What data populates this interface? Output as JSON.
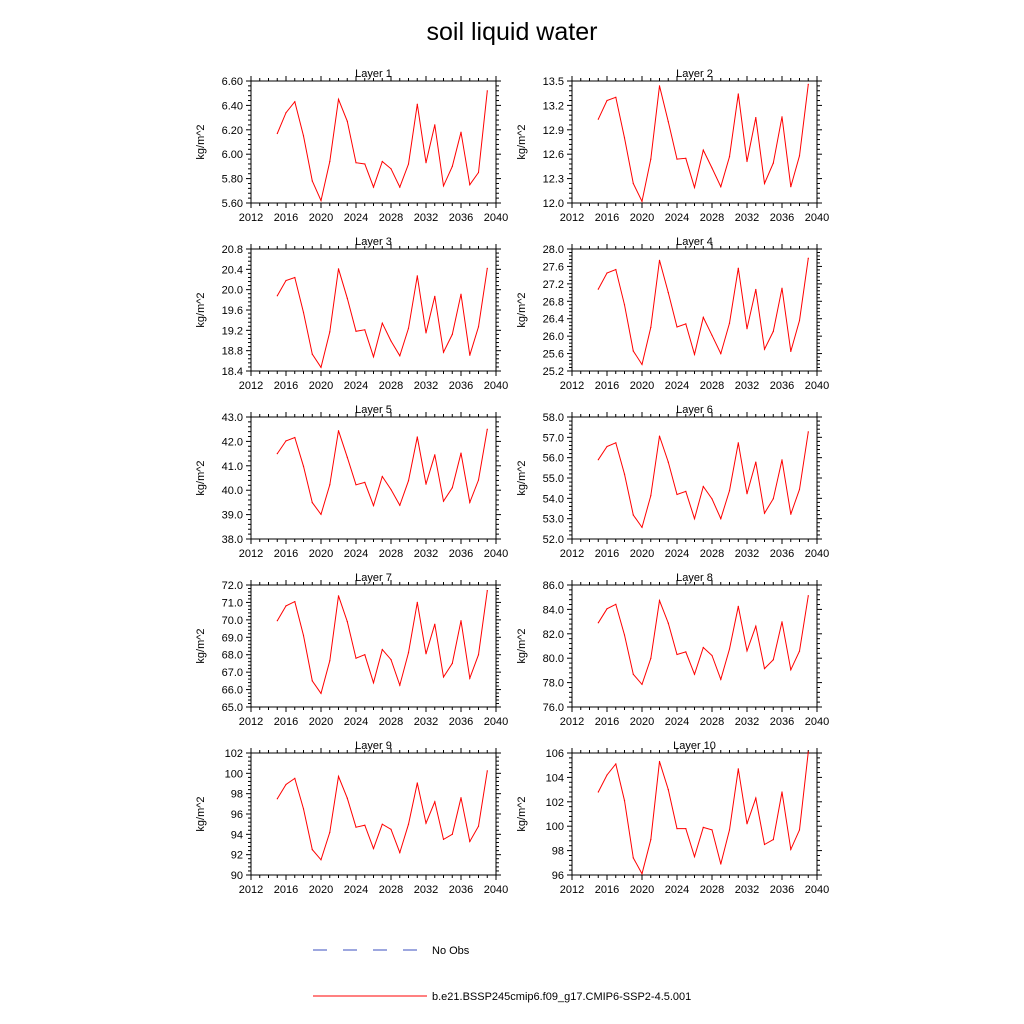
{
  "title": "soil liquid water",
  "colors": {
    "model": "#ff0000",
    "obs": "#3b4fbf",
    "axis": "#000000"
  },
  "legend": {
    "entries": [
      {
        "label": "No Obs",
        "style": "dashed",
        "color": "#3b4fbf"
      },
      {
        "label": "b.e21.BSSP245cmip6.f09_g17.CMIP6-SSP2-4.5.001",
        "style": "solid",
        "color": "#ff0000"
      }
    ]
  },
  "chart_data": [
    {
      "type": "line",
      "title": "Layer 1",
      "ylabel": "kg/m^2",
      "xlim": [
        2012,
        2040
      ],
      "xticks": [
        "2012",
        "2016",
        "2020",
        "2024",
        "2028",
        "2032",
        "2036",
        "2040"
      ],
      "ylim": [
        5.6,
        6.6
      ],
      "yticks": [
        "5.60",
        "5.80",
        "6.00",
        "6.20",
        "6.40",
        "6.60"
      ],
      "grid": false,
      "series": [
        {
          "x": [
            2015,
            2016,
            2017,
            2018,
            2019,
            2020,
            2021,
            2022,
            2023,
            2024,
            2025,
            2026,
            2027,
            2028,
            2029,
            2030,
            2031,
            2032,
            2033,
            2034,
            2035,
            2036,
            2037,
            2038,
            2039
          ],
          "values": [
            6.17,
            6.34,
            6.43,
            6.15,
            5.78,
            5.62,
            5.94,
            6.45,
            6.27,
            5.93,
            5.92,
            5.73,
            5.94,
            5.88,
            5.73,
            5.92,
            6.41,
            5.93,
            6.24,
            5.74,
            5.9,
            6.18,
            5.75,
            5.85,
            6.52
          ]
        }
      ]
    },
    {
      "type": "line",
      "title": "Layer 2",
      "ylabel": "kg/m^2",
      "xlim": [
        2012,
        2040
      ],
      "xticks": [
        "2012",
        "2016",
        "2020",
        "2024",
        "2028",
        "2032",
        "2036",
        "2040"
      ],
      "ylim": [
        12.0,
        13.5
      ],
      "yticks": [
        "12.0",
        "12.3",
        "12.6",
        "12.9",
        "13.2",
        "13.5"
      ],
      "grid": false,
      "series": [
        {
          "x": [
            2015,
            2016,
            2017,
            2018,
            2019,
            2020,
            2021,
            2022,
            2023,
            2024,
            2025,
            2026,
            2027,
            2028,
            2029,
            2030,
            2031,
            2032,
            2033,
            2034,
            2035,
            2036,
            2037,
            2038,
            2039
          ],
          "values": [
            13.03,
            13.26,
            13.3,
            12.8,
            12.24,
            12.02,
            12.54,
            13.44,
            13.0,
            12.54,
            12.55,
            12.19,
            12.65,
            12.43,
            12.2,
            12.57,
            13.34,
            12.51,
            13.05,
            12.24,
            12.49,
            13.06,
            12.2,
            12.58,
            13.46
          ]
        }
      ]
    },
    {
      "type": "line",
      "title": "Layer 3",
      "ylabel": "kg/m^2",
      "xlim": [
        2012,
        2040
      ],
      "xticks": [
        "2012",
        "2016",
        "2020",
        "2024",
        "2028",
        "2032",
        "2036",
        "2040"
      ],
      "ylim": [
        18.4,
        20.8
      ],
      "yticks": [
        "18.4",
        "18.8",
        "19.2",
        "19.6",
        "20.0",
        "20.4",
        "20.8"
      ],
      "grid": false,
      "series": [
        {
          "x": [
            2015,
            2016,
            2017,
            2018,
            2019,
            2020,
            2021,
            2022,
            2023,
            2024,
            2025,
            2026,
            2027,
            2028,
            2029,
            2030,
            2031,
            2032,
            2033,
            2034,
            2035,
            2036,
            2037,
            2038,
            2039
          ],
          "values": [
            19.88,
            20.18,
            20.24,
            19.55,
            18.73,
            18.47,
            19.17,
            20.41,
            19.83,
            19.18,
            19.21,
            18.68,
            19.34,
            18.99,
            18.7,
            19.24,
            20.27,
            19.15,
            19.87,
            18.77,
            19.12,
            19.91,
            18.71,
            19.27,
            20.42
          ]
        }
      ]
    },
    {
      "type": "line",
      "title": "Layer 4",
      "ylabel": "kg/m^2",
      "xlim": [
        2012,
        2040
      ],
      "xticks": [
        "2012",
        "2016",
        "2020",
        "2024",
        "2028",
        "2032",
        "2036",
        "2040"
      ],
      "ylim": [
        25.2,
        28.0
      ],
      "yticks": [
        "25.2",
        "25.6",
        "26.0",
        "26.4",
        "26.8",
        "27.2",
        "27.6",
        "28.0"
      ],
      "grid": false,
      "series": [
        {
          "x": [
            2015,
            2016,
            2017,
            2018,
            2019,
            2020,
            2021,
            2022,
            2023,
            2024,
            2025,
            2026,
            2027,
            2028,
            2029,
            2030,
            2031,
            2032,
            2033,
            2034,
            2035,
            2036,
            2037,
            2038,
            2039
          ],
          "values": [
            27.08,
            27.45,
            27.53,
            26.72,
            25.66,
            25.35,
            26.2,
            27.74,
            27.0,
            26.21,
            26.28,
            25.58,
            26.43,
            26.02,
            25.6,
            26.3,
            27.56,
            26.17,
            27.07,
            25.7,
            26.11,
            27.1,
            25.65,
            26.36,
            27.79
          ]
        }
      ]
    },
    {
      "type": "line",
      "title": "Layer 5",
      "ylabel": "kg/m^2",
      "xlim": [
        2012,
        2040
      ],
      "xticks": [
        "2012",
        "2016",
        "2020",
        "2024",
        "2028",
        "2032",
        "2036",
        "2040"
      ],
      "ylim": [
        38.0,
        43.0
      ],
      "yticks": [
        "38.0",
        "39.0",
        "40.0",
        "41.0",
        "42.0",
        "43.0"
      ],
      "grid": false,
      "series": [
        {
          "x": [
            2015,
            2016,
            2017,
            2018,
            2019,
            2020,
            2021,
            2022,
            2023,
            2024,
            2025,
            2026,
            2027,
            2028,
            2029,
            2030,
            2031,
            2032,
            2033,
            2034,
            2035,
            2036,
            2037,
            2038,
            2039
          ],
          "values": [
            41.5,
            42.02,
            42.16,
            40.98,
            39.49,
            39.01,
            40.22,
            42.44,
            41.35,
            40.22,
            40.32,
            39.37,
            40.56,
            40.03,
            39.38,
            40.39,
            42.18,
            40.25,
            41.45,
            39.55,
            40.1,
            41.52,
            39.5,
            40.42,
            42.5
          ]
        }
      ]
    },
    {
      "type": "line",
      "title": "Layer 6",
      "ylabel": "kg/m^2",
      "xlim": [
        2012,
        2040
      ],
      "xticks": [
        "2012",
        "2016",
        "2020",
        "2024",
        "2028",
        "2032",
        "2036",
        "2040"
      ],
      "ylim": [
        52.0,
        58.0
      ],
      "yticks": [
        "52.0",
        "53.0",
        "54.0",
        "55.0",
        "56.0",
        "57.0",
        "58.0"
      ],
      "grid": false,
      "series": [
        {
          "x": [
            2015,
            2016,
            2017,
            2018,
            2019,
            2020,
            2021,
            2022,
            2023,
            2024,
            2025,
            2026,
            2027,
            2028,
            2029,
            2030,
            2031,
            2032,
            2033,
            2034,
            2035,
            2036,
            2037,
            2038,
            2039
          ],
          "values": [
            55.9,
            56.55,
            56.73,
            55.19,
            53.18,
            52.57,
            54.13,
            57.06,
            55.78,
            54.19,
            54.34,
            53.0,
            54.58,
            53.97,
            53.0,
            54.38,
            56.73,
            54.23,
            55.78,
            53.27,
            53.98,
            55.89,
            53.22,
            54.44,
            57.27
          ]
        }
      ]
    },
    {
      "type": "line",
      "title": "Layer 7",
      "ylabel": "kg/m^2",
      "xlim": [
        2012,
        2040
      ],
      "xticks": [
        "2012",
        "2016",
        "2020",
        "2024",
        "2028",
        "2032",
        "2036",
        "2040"
      ],
      "ylim": [
        65.0,
        72.0
      ],
      "yticks": [
        "65.0",
        "66.0",
        "67.0",
        "68.0",
        "69.0",
        "70.0",
        "71.0",
        "72.0"
      ],
      "grid": false,
      "series": [
        {
          "x": [
            2015,
            2016,
            2017,
            2018,
            2019,
            2020,
            2021,
            2022,
            2023,
            2024,
            2025,
            2026,
            2027,
            2028,
            2029,
            2030,
            2031,
            2032,
            2033,
            2034,
            2035,
            2036,
            2037,
            2038,
            2039
          ],
          "values": [
            69.95,
            70.8,
            71.05,
            69.1,
            66.5,
            65.78,
            67.65,
            71.38,
            69.9,
            67.8,
            68.0,
            66.39,
            68.3,
            67.72,
            66.25,
            68.12,
            71.0,
            68.05,
            69.75,
            66.72,
            67.5,
            69.95,
            66.65,
            68.0,
            71.68
          ]
        }
      ]
    },
    {
      "type": "line",
      "title": "Layer 8",
      "ylabel": "kg/m^2",
      "xlim": [
        2012,
        2040
      ],
      "xticks": [
        "2012",
        "2016",
        "2020",
        "2024",
        "2028",
        "2032",
        "2036",
        "2040"
      ],
      "ylim": [
        76.0,
        86.0
      ],
      "yticks": [
        "76.0",
        "78.0",
        "80.0",
        "82.0",
        "84.0",
        "86.0"
      ],
      "grid": false,
      "series": [
        {
          "x": [
            2015,
            2016,
            2017,
            2018,
            2019,
            2020,
            2021,
            2022,
            2023,
            2024,
            2025,
            2026,
            2027,
            2028,
            2029,
            2030,
            2031,
            2032,
            2033,
            2034,
            2035,
            2036,
            2037,
            2038,
            2039
          ],
          "values": [
            82.9,
            84.05,
            84.42,
            81.9,
            78.68,
            77.85,
            79.98,
            84.72,
            82.88,
            80.3,
            80.52,
            78.68,
            80.88,
            80.22,
            78.26,
            80.75,
            84.25,
            80.6,
            82.62,
            79.15,
            79.88,
            82.98,
            79.05,
            80.58,
            85.12
          ]
        }
      ]
    },
    {
      "type": "line",
      "title": "Layer 9",
      "ylabel": "kg/m^2",
      "xlim": [
        2012,
        2040
      ],
      "xticks": [
        "2012",
        "2016",
        "2020",
        "2024",
        "2028",
        "2032",
        "2036",
        "2040"
      ],
      "ylim": [
        90,
        102
      ],
      "yticks": [
        "90",
        "92",
        "94",
        "96",
        "98",
        "100",
        "102"
      ],
      "grid": false,
      "series": [
        {
          "x": [
            2015,
            2016,
            2017,
            2018,
            2019,
            2020,
            2021,
            2022,
            2023,
            2024,
            2025,
            2026,
            2027,
            2028,
            2029,
            2030,
            2031,
            2032,
            2033,
            2034,
            2035,
            2036,
            2037,
            2038,
            2039
          ],
          "values": [
            97.5,
            98.9,
            99.5,
            96.5,
            92.5,
            91.5,
            94.2,
            99.7,
            97.55,
            94.7,
            94.9,
            92.6,
            95.0,
            94.5,
            92.2,
            95.0,
            99.05,
            95.1,
            97.2,
            93.5,
            94.0,
            97.6,
            93.3,
            94.8,
            100.25
          ]
        }
      ]
    },
    {
      "type": "line",
      "title": "Layer 10",
      "ylabel": "kg/m^2",
      "xlim": [
        2012,
        2040
      ],
      "xticks": [
        "2012",
        "2016",
        "2020",
        "2024",
        "2028",
        "2032",
        "2036",
        "2040"
      ],
      "ylim": [
        96,
        106
      ],
      "yticks": [
        "96",
        "98",
        "100",
        "102",
        "104",
        "106"
      ],
      "grid": false,
      "series": [
        {
          "x": [
            2015,
            2016,
            2017,
            2018,
            2019,
            2020,
            2021,
            2022,
            2023,
            2024,
            2025,
            2026,
            2027,
            2028,
            2029,
            2030,
            2031,
            2032,
            2033,
            2034,
            2035,
            2036,
            2037,
            2038,
            2039
          ],
          "values": [
            102.8,
            104.2,
            105.1,
            102.1,
            97.4,
            96.1,
            98.9,
            105.3,
            103.0,
            99.8,
            99.8,
            97.5,
            99.9,
            99.7,
            96.9,
            99.7,
            104.7,
            100.2,
            102.3,
            98.5,
            98.9,
            102.8,
            98.1,
            99.7,
            106.1
          ]
        }
      ]
    }
  ]
}
